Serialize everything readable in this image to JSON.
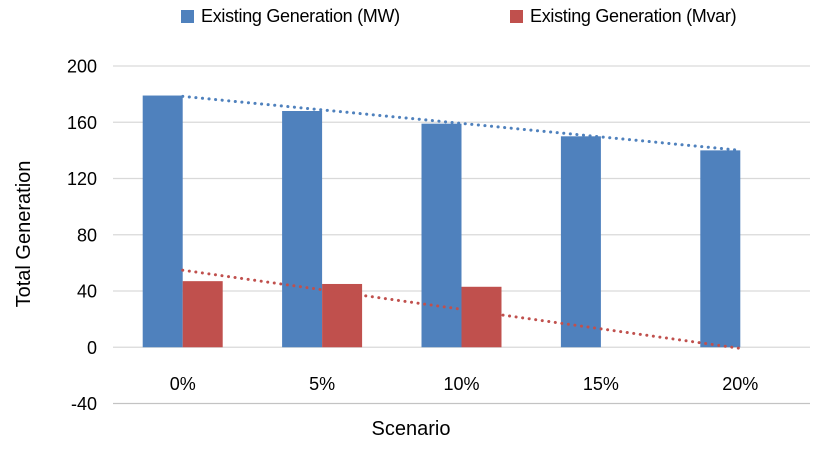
{
  "chart_data": {
    "type": "bar",
    "title": "",
    "categories": [
      "0%",
      "5%",
      "10%",
      "15%",
      "20%"
    ],
    "series": [
      {
        "name": "Existing Generation (MW)",
        "color": "#4F81BD",
        "values": [
          179,
          168,
          159,
          150,
          140
        ],
        "trendline": {
          "type": "linear",
          "style": "dotted",
          "start_value": 178.4,
          "end_value": 140.0
        }
      },
      {
        "name": "Existing Generation (Mvar)",
        "color": "#C0504D",
        "values": [
          47,
          45,
          43,
          0,
          0
        ],
        "trendline": {
          "type": "linear",
          "style": "dotted",
          "start_value": 54.8,
          "end_value": -0.8
        }
      }
    ],
    "xlabel": "Scenario",
    "ylabel": "Total Generation",
    "ylim": [
      -40,
      200
    ],
    "yticks": [
      -40,
      0,
      40,
      80,
      120,
      160,
      200
    ],
    "grid": true,
    "legend_position": "top"
  },
  "colors": {
    "grid": "#D9D9D9",
    "axis_line": "#C3C3C3",
    "text": "#000000",
    "background": "#FFFFFF"
  }
}
